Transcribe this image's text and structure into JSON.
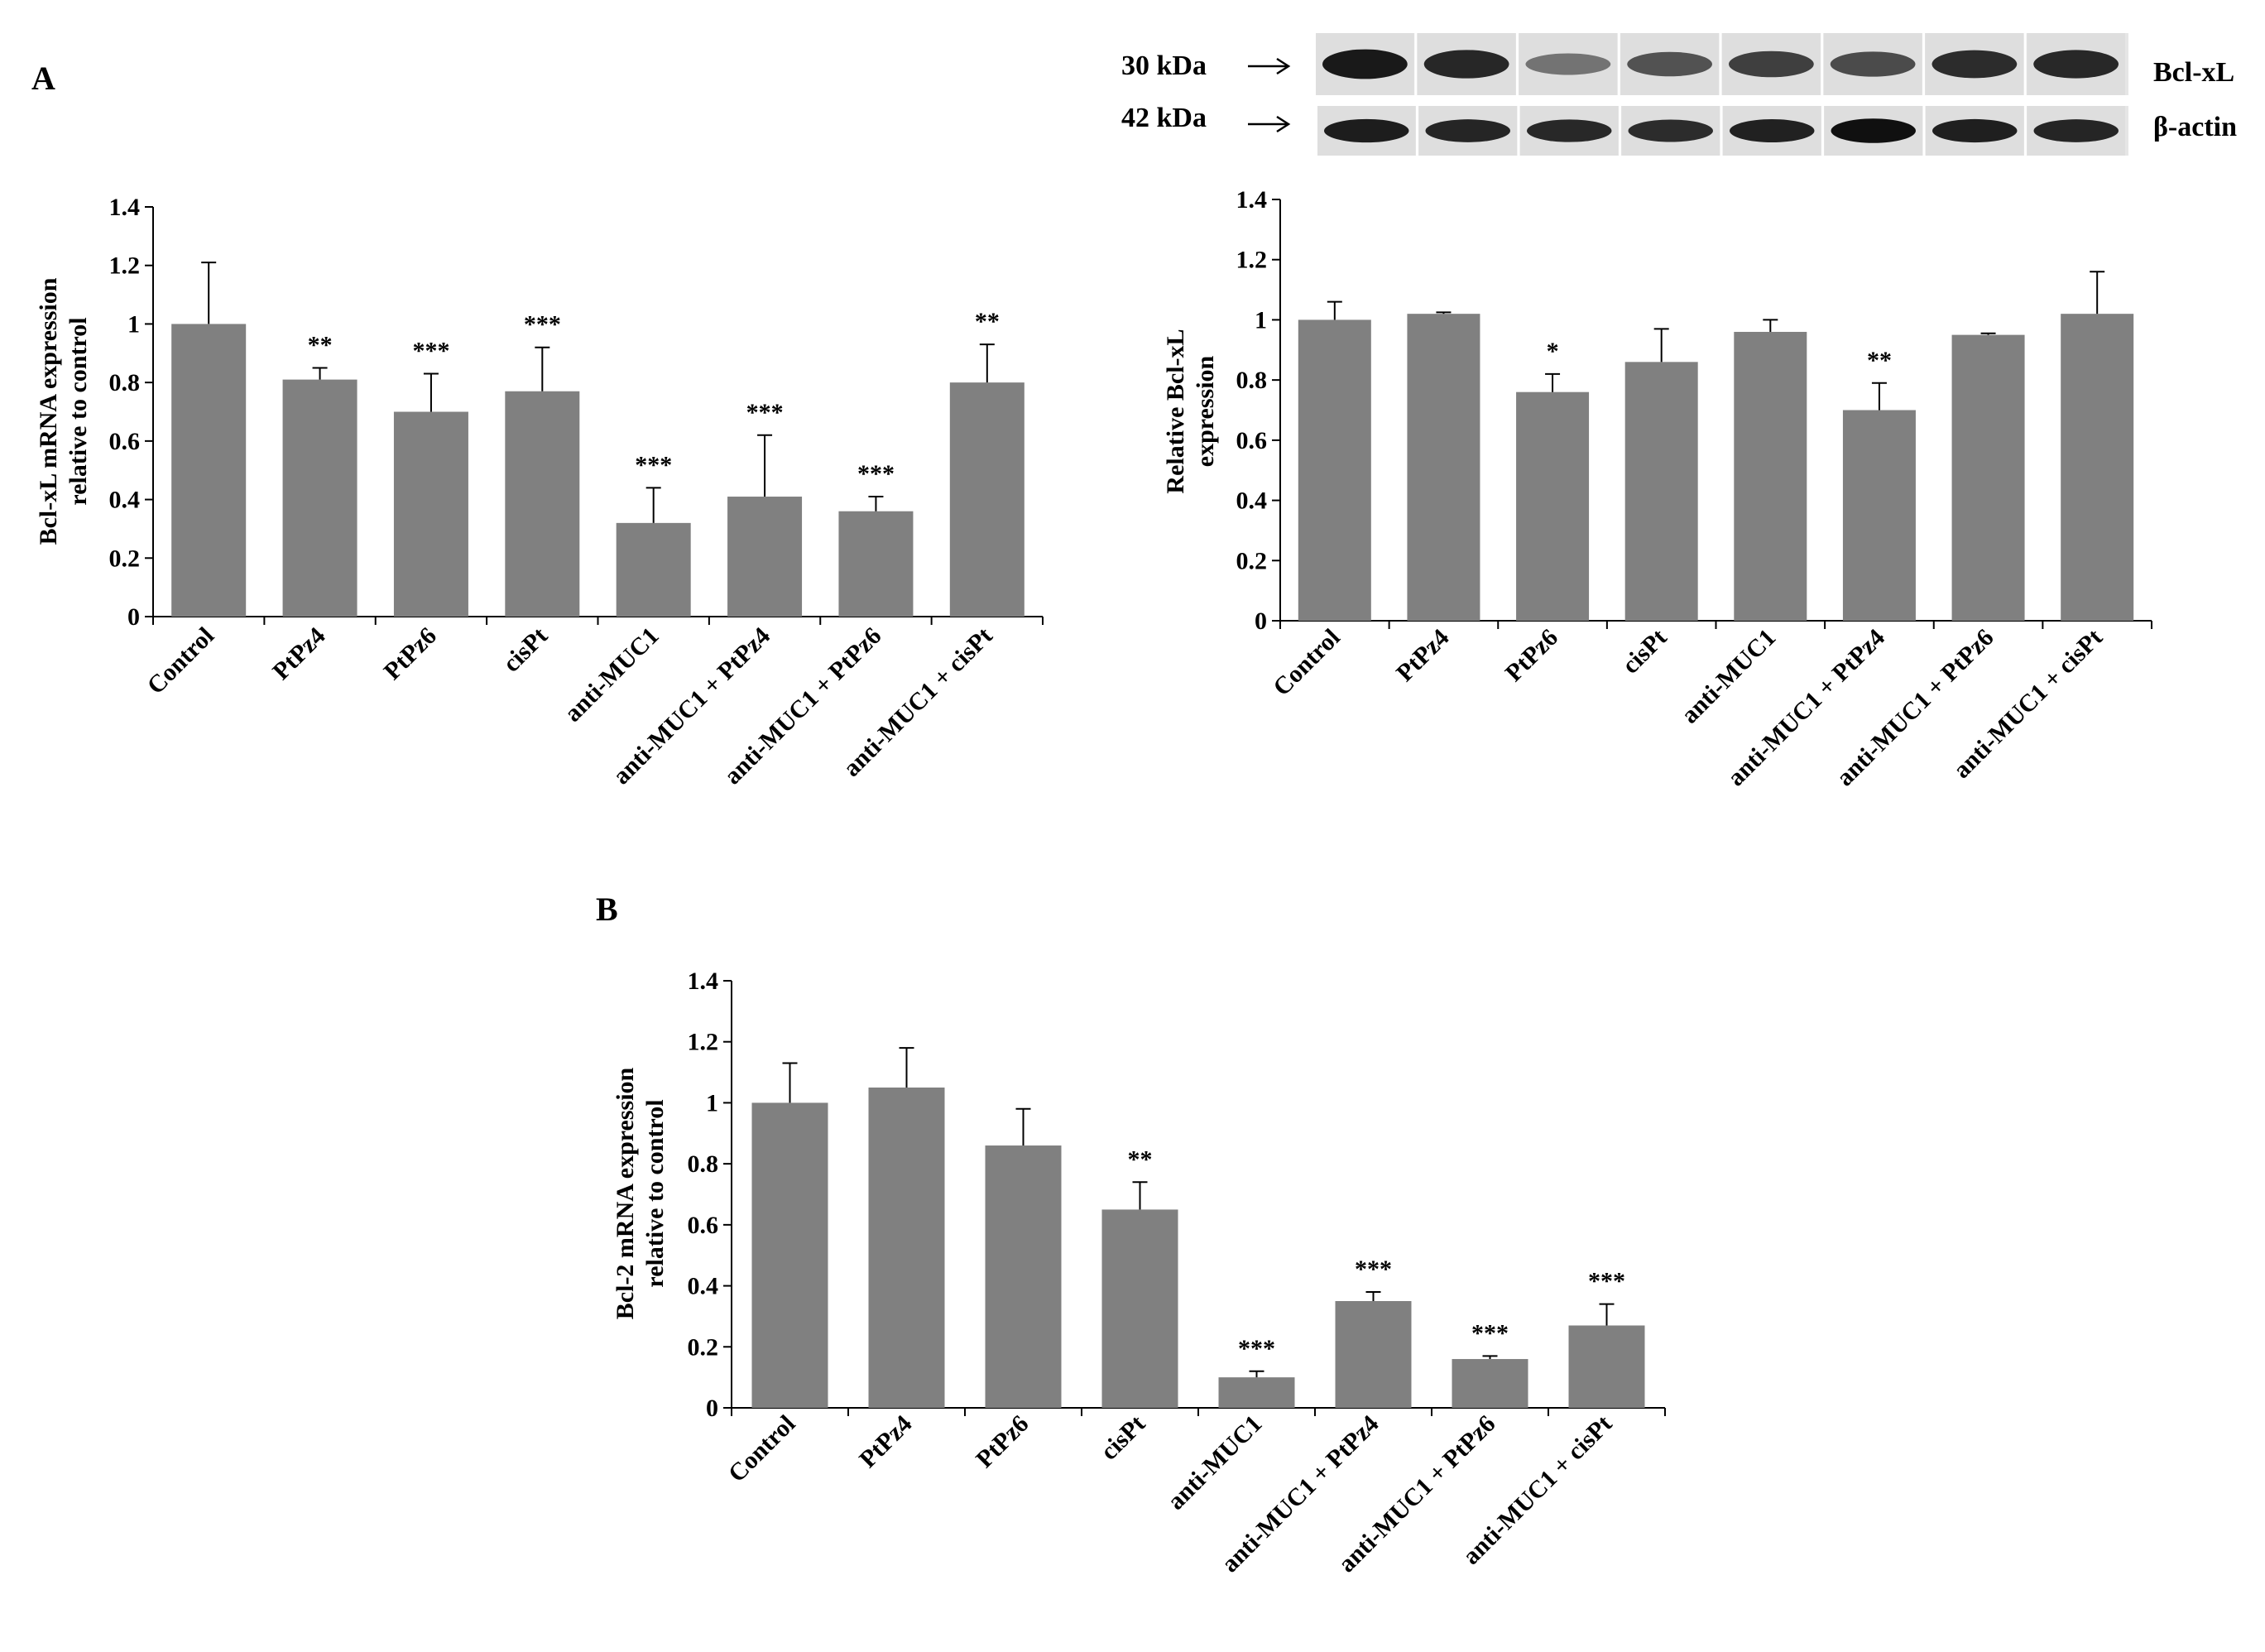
{
  "panels": {
    "a_label": "A",
    "b_label": "B"
  },
  "western_blot": {
    "markers": [
      {
        "size": "30 kDa",
        "protein": "Bcl-xL",
        "intensity": [
          0.92,
          0.85,
          0.45,
          0.62,
          0.72,
          0.66,
          0.82,
          0.84
        ]
      },
      {
        "size": "42 kDa",
        "protein": "β-actin",
        "intensity": [
          0.9,
          0.86,
          0.84,
          0.82,
          0.88,
          0.97,
          0.89,
          0.86
        ]
      }
    ],
    "lane_count": 8
  },
  "colors": {
    "bar": "#808080",
    "axis": "#000000",
    "error": "#000000"
  },
  "chart_data": [
    {
      "id": "bclxl-mrna",
      "type": "bar",
      "categories": [
        "Control",
        "PtPz4",
        "PtPz6",
        "cisPt",
        "anti-MUC1",
        "anti-MUC1 + PtPz4",
        "anti-MUC1 + PtPz6",
        "anti-MUC1 + cisPt"
      ],
      "values": [
        1.0,
        0.81,
        0.7,
        0.77,
        0.32,
        0.41,
        0.36,
        0.8
      ],
      "errors": [
        0.21,
        0.04,
        0.13,
        0.15,
        0.12,
        0.21,
        0.05,
        0.13
      ],
      "significance": [
        "",
        "**",
        "***",
        "***",
        "***",
        "***",
        "***",
        "**"
      ],
      "ylabel_lines": [
        "Bcl-xL  mRNA  expression",
        "relative  to control"
      ],
      "ylim": [
        0,
        1.4
      ],
      "yticks": [
        "0",
        "0.2",
        "0.4",
        "0.6",
        "0.8",
        "1",
        "1.2",
        "1.4"
      ],
      "grid": false
    },
    {
      "id": "bclxl-protein",
      "type": "bar",
      "categories": [
        "Control",
        "PtPz4",
        "PtPz6",
        "cisPt",
        "anti-MUC1",
        "anti-MUC1 + PtPz4",
        "anti-MUC1 + PtPz6",
        "anti-MUC1 + cisPt"
      ],
      "values": [
        1.0,
        1.02,
        0.76,
        0.86,
        0.96,
        0.7,
        0.95,
        1.02
      ],
      "errors": [
        0.06,
        0.005,
        0.06,
        0.11,
        0.04,
        0.09,
        0.005,
        0.14
      ],
      "significance": [
        "",
        "",
        "*",
        "",
        "",
        "**",
        "",
        ""
      ],
      "ylabel_lines": [
        "Relative  Bcl-xL",
        "expression"
      ],
      "ylim": [
        0,
        1.4
      ],
      "yticks": [
        "0",
        "0.2",
        "0.4",
        "0.6",
        "0.8",
        "1",
        "1.2",
        "1.4"
      ],
      "grid": false
    },
    {
      "id": "bcl2-mrna",
      "type": "bar",
      "categories": [
        "Control",
        "PtPz4",
        "PtPz6",
        "cisPt",
        "anti-MUC1",
        "anti-MUC1 + PtPz4",
        "anti-MUC1 + PtPz6",
        "anti-MUC1 + cisPt"
      ],
      "values": [
        1.0,
        1.05,
        0.86,
        0.65,
        0.1,
        0.35,
        0.16,
        0.27
      ],
      "errors": [
        0.13,
        0.13,
        0.12,
        0.09,
        0.02,
        0.03,
        0.01,
        0.07
      ],
      "significance": [
        "",
        "",
        "",
        "**",
        "***",
        "***",
        "***",
        "***"
      ],
      "ylabel_lines": [
        "Bcl-2 mRNA  expression",
        "relative  to control"
      ],
      "ylim": [
        0,
        1.4
      ],
      "yticks": [
        "0",
        "0.2",
        "0.4",
        "0.6",
        "0.8",
        "1",
        "1.2",
        "1.4"
      ],
      "grid": false
    }
  ]
}
